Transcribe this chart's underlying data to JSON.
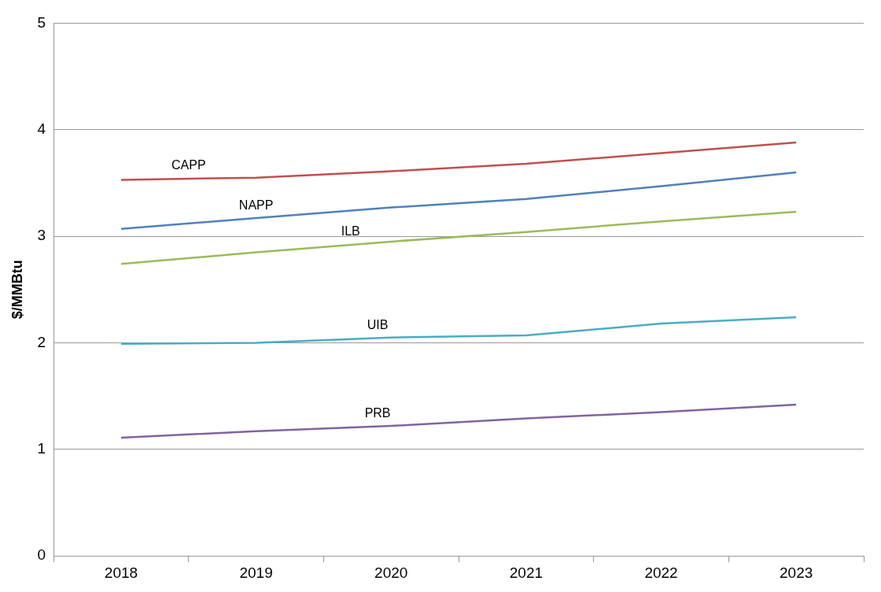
{
  "chart_data": {
    "type": "line",
    "ylabel": "$/MMBtu",
    "categories": [
      "2018",
      "2019",
      "2020",
      "2021",
      "2022",
      "2023"
    ],
    "series": [
      {
        "name": "CAPP",
        "color": "#c0504d",
        "values": [
          3.53,
          3.55,
          3.61,
          3.68,
          3.78,
          3.88
        ]
      },
      {
        "name": "NAPP",
        "color": "#4f81bd",
        "values": [
          3.07,
          3.17,
          3.27,
          3.35,
          3.47,
          3.6
        ]
      },
      {
        "name": "ILB",
        "color": "#9bbb59",
        "values": [
          2.74,
          2.85,
          2.95,
          3.04,
          3.14,
          3.23
        ]
      },
      {
        "name": "UIB",
        "color": "#4bacc6",
        "values": [
          1.99,
          2.0,
          2.05,
          2.07,
          2.18,
          2.24
        ]
      },
      {
        "name": "PRB",
        "color": "#8064a2",
        "values": [
          1.11,
          1.17,
          1.22,
          1.29,
          1.35,
          1.42
        ]
      }
    ],
    "ylim": [
      0,
      5
    ],
    "yticks": [
      0,
      1,
      2,
      3,
      4,
      5
    ],
    "grid": "y",
    "legend": false,
    "marker": "none",
    "line_style": "solid"
  }
}
